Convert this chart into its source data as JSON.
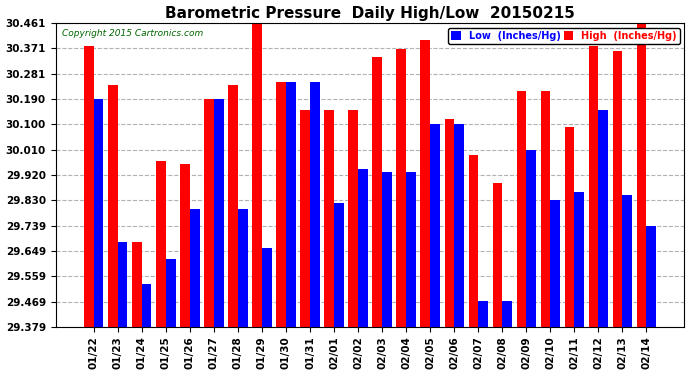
{
  "title": "Barometric Pressure  Daily High/Low  20150215",
  "copyright": "Copyright 2015 Cartronics.com",
  "categories": [
    "01/22",
    "01/23",
    "01/24",
    "01/25",
    "01/26",
    "01/27",
    "01/28",
    "01/29",
    "01/30",
    "01/31",
    "02/01",
    "02/02",
    "02/03",
    "02/04",
    "02/05",
    "02/06",
    "02/07",
    "02/08",
    "02/09",
    "02/10",
    "02/11",
    "02/12",
    "02/13",
    "02/14"
  ],
  "low_values": [
    30.19,
    29.68,
    29.53,
    29.62,
    29.8,
    30.19,
    29.8,
    29.66,
    30.25,
    30.25,
    29.82,
    29.94,
    29.93,
    29.93,
    30.1,
    30.1,
    29.47,
    29.47,
    30.01,
    29.83,
    29.86,
    30.15,
    29.85,
    29.74
  ],
  "high_values": [
    30.38,
    30.24,
    29.68,
    29.97,
    29.96,
    30.19,
    30.24,
    30.46,
    30.25,
    30.15,
    30.15,
    30.15,
    30.34,
    30.37,
    30.4,
    30.12,
    29.99,
    29.89,
    30.22,
    30.22,
    30.09,
    30.38,
    30.36,
    30.46
  ],
  "low_color": "#0000ff",
  "high_color": "#ff0000",
  "bg_color": "#ffffff",
  "grid_color": "#aaaaaa",
  "ybase": 29.379,
  "ylim_min": 29.379,
  "ylim_max": 30.461,
  "yticks": [
    29.379,
    29.469,
    29.559,
    29.649,
    29.739,
    29.83,
    29.92,
    30.01,
    30.1,
    30.19,
    30.281,
    30.371,
    30.461
  ],
  "title_fontsize": 11,
  "tick_fontsize": 7.5,
  "legend_low_label": "Low  (Inches/Hg)",
  "legend_high_label": "High  (Inches/Hg)"
}
